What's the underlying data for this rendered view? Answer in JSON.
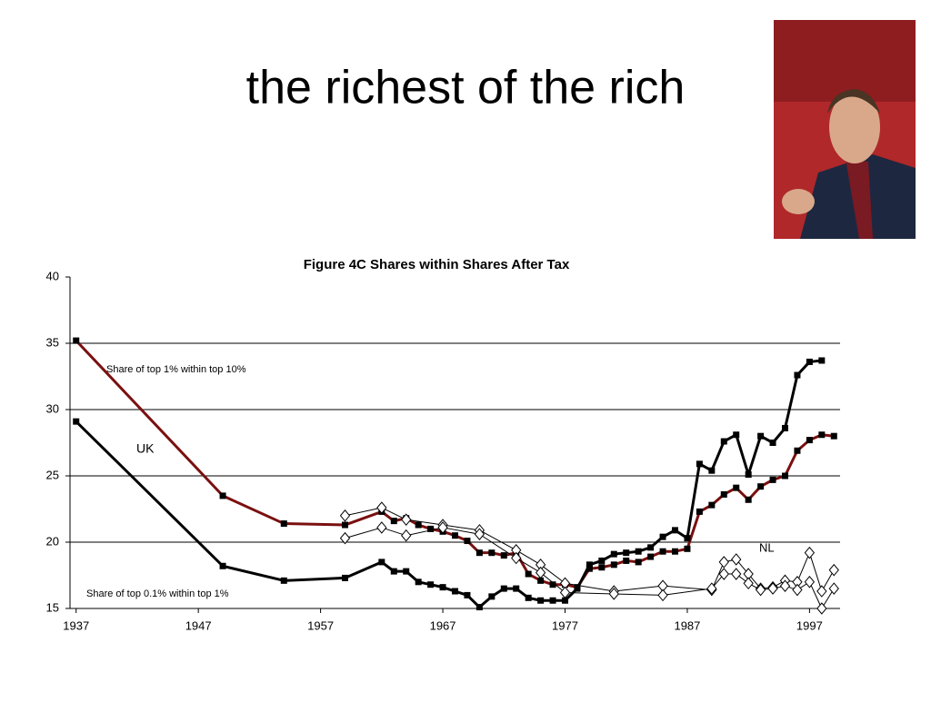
{
  "header": {
    "title": "the richest of the rich"
  },
  "chart_data": {
    "type": "line",
    "title": "Figure 4C  Shares within Shares After Tax",
    "annotations": [
      "Share of top 1% within top 10%",
      "UK",
      "NL",
      "Share of top 0.1% within top 1%"
    ],
    "xlim": [
      1936.5,
      1999.5
    ],
    "xticks": [
      1937,
      1947,
      1957,
      1967,
      1977,
      1987,
      1997
    ],
    "ylim": [
      15,
      40
    ],
    "yticks": [
      15,
      20,
      25,
      30,
      35,
      40
    ],
    "grid": true,
    "series": [
      {
        "color": "#7a1010",
        "marker": "square",
        "width": 3,
        "x": [
          1937,
          1949,
          1954,
          1959,
          1962,
          1963,
          1964,
          1965,
          1966,
          1967,
          1968,
          1969,
          1970,
          1971,
          1972,
          1973,
          1974,
          1975,
          1976,
          1977,
          1978,
          1979,
          1980,
          1981,
          1982,
          1983,
          1984,
          1985,
          1986,
          1987,
          1988,
          1989,
          1990,
          1991,
          1992,
          1993,
          1994,
          1995,
          1996,
          1997,
          1998,
          1999
        ],
        "values": [
          35.2,
          23.5,
          21.4,
          21.3,
          22.3,
          21.6,
          21.8,
          21.3,
          21.0,
          20.8,
          20.5,
          20.1,
          19.2,
          19.2,
          19.0,
          19.2,
          17.6,
          17.1,
          16.8,
          16.8,
          16.6,
          18.0,
          18.1,
          18.3,
          18.6,
          18.5,
          18.9,
          19.3,
          19.3,
          19.5,
          22.3,
          22.8,
          23.6,
          24.1,
          23.2,
          24.2,
          24.7,
          25.0,
          26.9,
          27.7,
          28.1,
          28.0
        ]
      },
      {
        "color": "#000000",
        "marker": "square",
        "width": 3,
        "x": [
          1937,
          1949,
          1954,
          1959,
          1962,
          1963,
          1964,
          1965,
          1966,
          1967,
          1968,
          1969,
          1970,
          1971,
          1972,
          1973,
          1974,
          1975,
          1976,
          1977,
          1978,
          1979,
          1980,
          1981,
          1982,
          1983,
          1984,
          1985,
          1986,
          1987,
          1988,
          1989,
          1990,
          1991,
          1992,
          1993,
          1994,
          1995,
          1996,
          1997,
          1998
        ],
        "values": [
          29.1,
          18.2,
          17.1,
          17.3,
          18.5,
          17.8,
          17.8,
          17.0,
          16.8,
          16.6,
          16.3,
          16.0,
          15.1,
          15.9,
          16.5,
          16.5,
          15.8,
          15.6,
          15.6,
          15.6,
          16.5,
          18.3,
          18.6,
          19.1,
          19.2,
          19.3,
          19.6,
          20.4,
          20.9,
          20.3,
          25.9,
          25.4,
          27.6,
          28.1,
          25.1,
          28.0,
          27.5,
          28.6,
          32.6,
          33.6,
          33.7
        ]
      },
      {
        "color": "#000000",
        "marker": "diamond",
        "width": 1,
        "x": [
          1959,
          1962,
          1964,
          1967,
          1970,
          1973,
          1975,
          1977,
          1981,
          1985,
          1989,
          1990,
          1991,
          1992,
          1993,
          1994,
          1995,
          1996,
          1997,
          1998,
          1999
        ],
        "values": [
          22.0,
          22.6,
          21.7,
          21.3,
          20.9,
          19.4,
          18.3,
          16.9,
          16.3,
          16.7,
          16.4,
          18.5,
          18.7,
          17.6,
          16.5,
          16.6,
          17.1,
          17.0,
          19.2,
          16.3,
          17.9
        ]
      },
      {
        "color": "#000000",
        "marker": "diamond",
        "width": 1,
        "x": [
          1959,
          1962,
          1964,
          1967,
          1970,
          1973,
          1975,
          1977,
          1981,
          1985,
          1989,
          1990,
          1991,
          1992,
          1993,
          1994,
          1995,
          1996,
          1997,
          1998,
          1999
        ],
        "values": [
          20.3,
          21.1,
          20.5,
          21.1,
          20.6,
          18.8,
          17.7,
          16.2,
          16.1,
          16.0,
          16.5,
          17.6,
          17.6,
          16.9,
          16.4,
          16.5,
          16.7,
          16.4,
          17.0,
          15.0,
          16.5
        ]
      }
    ]
  }
}
